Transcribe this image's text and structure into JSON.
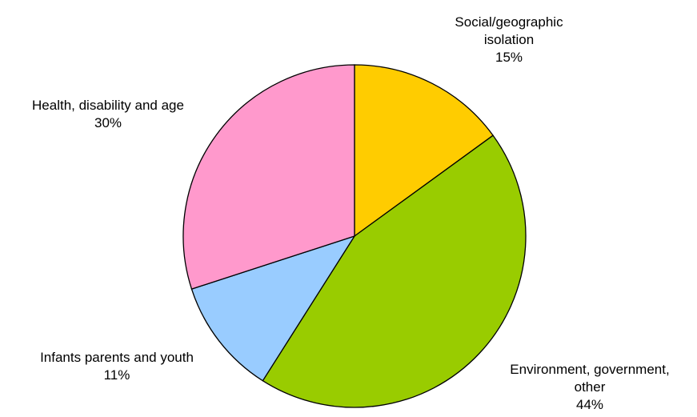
{
  "chart_data": {
    "type": "pie",
    "title": "",
    "legend": "none",
    "slices": [
      {
        "lines": [
          "Social/geographic",
          "isolation"
        ],
        "percent_label": "15%",
        "value": 15,
        "color": "#ffcc00"
      },
      {
        "lines": [
          "Environment, government,",
          "other"
        ],
        "percent_label": "44%",
        "value": 44,
        "color": "#99cc00"
      },
      {
        "lines": [
          "Infants parents and youth"
        ],
        "percent_label": "11%",
        "value": 11,
        "color": "#99ccff"
      },
      {
        "lines": [
          "Health, disability and age"
        ],
        "percent_label": "30%",
        "value": 30,
        "color": "#ff99cc"
      }
    ]
  }
}
